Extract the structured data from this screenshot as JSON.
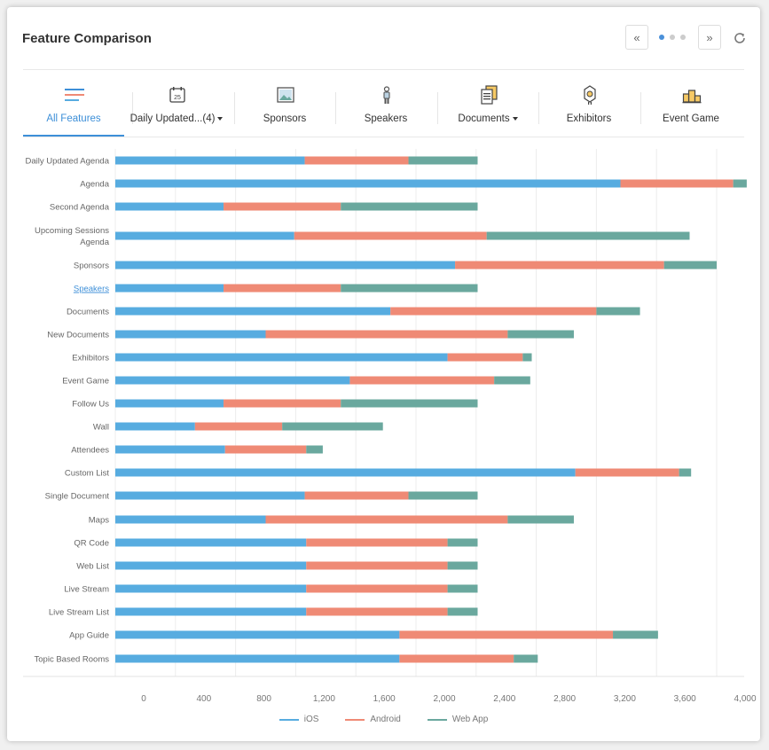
{
  "header": {
    "title": "Feature Comparison",
    "prev_label": "«",
    "next_label": "»"
  },
  "tabs": [
    {
      "label": "All Features",
      "icon": "lines-icon",
      "active": true
    },
    {
      "label": "Daily Updated...(4)",
      "icon": "calendar-icon",
      "dropdown": true,
      "calendar_day": "25"
    },
    {
      "label": "Sponsors",
      "icon": "image-icon"
    },
    {
      "label": "Speakers",
      "icon": "person-icon"
    },
    {
      "label": "Documents",
      "icon": "documents-icon",
      "dropdown": true
    },
    {
      "label": "Exhibitors",
      "icon": "badge-icon"
    },
    {
      "label": "Event Game",
      "icon": "podium-icon"
    }
  ],
  "colors": {
    "ios": "#57ace0",
    "android": "#ef8a75",
    "webapp": "#6aa89e",
    "accent": "#3d8fd8"
  },
  "chart_data": {
    "type": "bar",
    "orientation": "horizontal",
    "stacked": true,
    "categories": [
      "Daily Updated Agenda",
      "Agenda",
      "Second Agenda",
      "Upcoming Sessions Agenda",
      "Sponsors",
      "Speakers",
      "Documents",
      "New Documents",
      "Exhibitors",
      "Event Game",
      "Follow Us",
      "Wall",
      "Attendees",
      "Custom List",
      "Single Document",
      "Maps",
      "QR Code",
      "Web List",
      "Live Stream",
      "Live Stream List",
      "App Guide",
      "Topic Based Rooms"
    ],
    "series": [
      {
        "name": "iOS",
        "values": [
          1260,
          3360,
          720,
          1190,
          2260,
          720,
          1830,
          1000,
          2210,
          1560,
          720,
          530,
          730,
          3060,
          1260,
          1000,
          1270,
          1270,
          1270,
          1270,
          1890,
          1890
        ]
      },
      {
        "name": "Android",
        "values": [
          690,
          750,
          780,
          1280,
          1390,
          780,
          1370,
          1610,
          500,
          960,
          780,
          580,
          540,
          690,
          690,
          1610,
          940,
          940,
          940,
          940,
          1420,
          760
        ]
      },
      {
        "name": "Web App",
        "values": [
          460,
          90,
          910,
          1350,
          350,
          910,
          290,
          440,
          60,
          240,
          910,
          670,
          110,
          80,
          460,
          440,
          200,
          200,
          200,
          200,
          300,
          160
        ]
      }
    ],
    "xlim": [
      0,
      4000
    ],
    "xticks": [
      "0",
      "400",
      "800",
      "1,200",
      "1,600",
      "2,000",
      "2,400",
      "2,800",
      "3,200",
      "3,600",
      "4,000"
    ],
    "link_category": "Speakers",
    "grid": true,
    "legend": "bottom"
  }
}
